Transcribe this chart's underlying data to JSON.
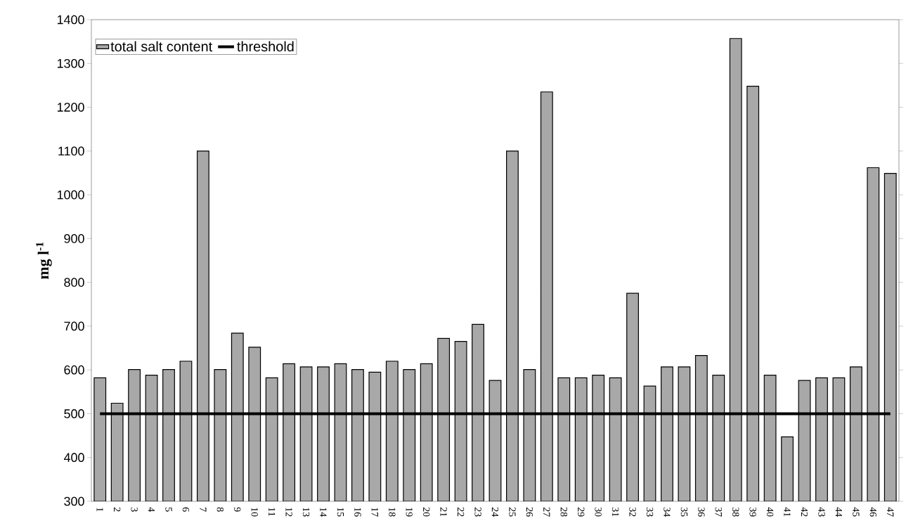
{
  "chart_data": {
    "type": "bar",
    "ylabel": "mg l$^{-1}$",
    "categories": [
      "1",
      "2",
      "3",
      "4",
      "5",
      "6",
      "7",
      "8",
      "9",
      "10",
      "11",
      "12",
      "13",
      "14",
      "15",
      "16",
      "17",
      "18",
      "19",
      "20",
      "21",
      "22",
      "23",
      "24",
      "25",
      "26",
      "27",
      "28",
      "29",
      "30",
      "31",
      "32",
      "33",
      "34",
      "35",
      "36",
      "37",
      "38",
      "39",
      "40",
      "41",
      "42",
      "43",
      "44",
      "45",
      "46",
      "47"
    ],
    "series": [
      {
        "name": "total salt content",
        "color": "#a8a8a8",
        "values": [
          582,
          524,
          601,
          588,
          601,
          620,
          1100,
          601,
          684,
          652,
          582,
          614,
          607,
          607,
          614,
          601,
          595,
          620,
          601,
          614,
          672,
          665,
          704,
          576,
          1100,
          601,
          1235,
          582,
          582,
          588,
          582,
          775,
          563,
          607,
          607,
          633,
          588,
          1357,
          1248,
          588,
          447,
          576,
          582,
          582,
          607,
          1062,
          1049
        ]
      },
      {
        "name": "threshold",
        "type": "line",
        "color": "#000000",
        "line_style": "solid",
        "values": [
          500,
          500,
          500,
          500,
          500,
          500,
          500,
          500,
          500,
          500,
          500,
          500,
          500,
          500,
          500,
          500,
          500,
          500,
          500,
          500,
          500,
          500,
          500,
          500,
          500,
          500,
          500,
          500,
          500,
          500,
          500,
          500,
          500,
          500,
          500,
          500,
          500,
          500,
          500,
          500,
          500,
          500,
          500,
          500,
          500,
          500,
          500
        ]
      }
    ],
    "ylim": [
      300,
      1400
    ],
    "yticks": [
      300,
      400,
      500,
      600,
      700,
      800,
      900,
      1000,
      1100,
      1200,
      1300,
      1400
    ],
    "grid": false,
    "legend": "top left",
    "marker": "none"
  }
}
